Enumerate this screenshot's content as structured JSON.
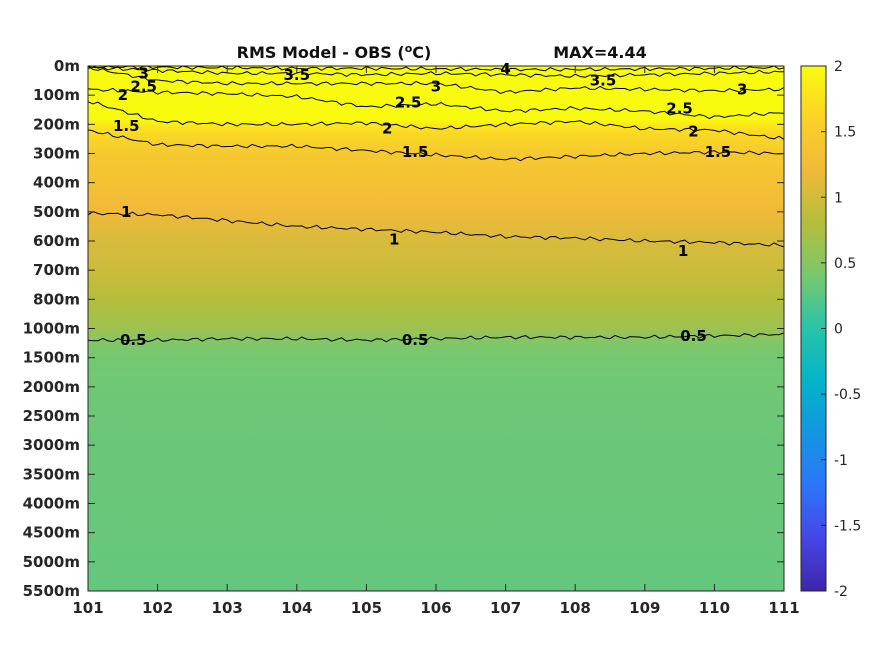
{
  "chart_data": {
    "type": "heatmap",
    "title": "RMS Model - OBS (°C)",
    "title_parts": {
      "pre": "RMS Model - OBS (",
      "sup": "o",
      "post": "C)"
    },
    "annotation": "MAX=4.44",
    "x_ticks": [
      "101",
      "102",
      "103",
      "104",
      "105",
      "106",
      "107",
      "108",
      "109",
      "110",
      "111"
    ],
    "x_range": [
      101,
      111
    ],
    "y_ticks": [
      "0m",
      "100m",
      "200m",
      "300m",
      "400m",
      "500m",
      "600m",
      "700m",
      "800m",
      "1000m",
      "1500m",
      "2000m",
      "2500m",
      "3000m",
      "3500m",
      "4000m",
      "4500m",
      "5000m",
      "5500m"
    ],
    "colorbar": {
      "range": [
        -2,
        2
      ],
      "ticks": [
        "2",
        "1.5",
        "1",
        "0.5",
        "0",
        "-0.5",
        "-1",
        "-1.5",
        "-2"
      ],
      "colormap": "parula"
    },
    "contour_levels": [
      0.5,
      1,
      1.5,
      2,
      2.5,
      3,
      3.5,
      4
    ],
    "contours": [
      {
        "level": 0.5,
        "depth_index": [
          9.4,
          9.4,
          9.35,
          9.35,
          9.4,
          9.35,
          9.3,
          9.3,
          9.3,
          9.25,
          9.2
        ]
      },
      {
        "level": 1,
        "depth_index": [
          5.05,
          5.1,
          5.3,
          5.5,
          5.6,
          5.7,
          5.85,
          5.9,
          6.0,
          6.05,
          6.15
        ]
      },
      {
        "level": 1.5,
        "depth_index": [
          2.2,
          2.7,
          2.75,
          2.75,
          2.9,
          3.05,
          3.2,
          3.1,
          3.0,
          2.95,
          3.0
        ]
      },
      {
        "level": 2,
        "depth_index": [
          1.2,
          1.9,
          2.0,
          2.0,
          1.95,
          2.15,
          2.0,
          1.9,
          2.15,
          2.2,
          2.5
        ]
      },
      {
        "level": 2.5,
        "depth_index": [
          0.8,
          0.9,
          0.95,
          1.05,
          1.4,
          1.3,
          1.55,
          1.45,
          1.55,
          1.75,
          1.6
        ]
      },
      {
        "level": 3,
        "depth_index": [
          0.05,
          0.5,
          0.6,
          0.6,
          0.6,
          0.6,
          0.9,
          0.75,
          0.8,
          0.85,
          0.8
        ]
      },
      {
        "level": 3.5,
        "depth_index": [
          0.05,
          0.15,
          0.25,
          0.25,
          0.3,
          0.25,
          0.3,
          0.35,
          0.3,
          0.25,
          0.2
        ]
      },
      {
        "level": 4,
        "depth_index": [
          0.02,
          0.04,
          0.06,
          0.08,
          0.08,
          0.1,
          0.12,
          0.12,
          0.1,
          0.08,
          0.05
        ]
      }
    ],
    "contour_labels": [
      {
        "text": "3",
        "x": 101.8,
        "y": 0.25
      },
      {
        "text": "2.5",
        "x": 101.8,
        "y": 0.7
      },
      {
        "text": "2",
        "x": 101.5,
        "y": 1.0
      },
      {
        "text": "1.5",
        "x": 101.55,
        "y": 2.05
      },
      {
        "text": "3.5",
        "x": 104.0,
        "y": 0.3
      },
      {
        "text": "3",
        "x": 106.0,
        "y": 0.7
      },
      {
        "text": "2.5",
        "x": 105.6,
        "y": 1.25
      },
      {
        "text": "2",
        "x": 105.3,
        "y": 2.15
      },
      {
        "text": "1.5",
        "x": 105.7,
        "y": 2.95
      },
      {
        "text": "4",
        "x": 107.0,
        "y": 0.1
      },
      {
        "text": "3.5",
        "x": 108.4,
        "y": 0.5
      },
      {
        "text": "2.5",
        "x": 109.5,
        "y": 1.45
      },
      {
        "text": "3",
        "x": 110.4,
        "y": 0.8
      },
      {
        "text": "2",
        "x": 109.7,
        "y": 2.25
      },
      {
        "text": "1.5",
        "x": 110.05,
        "y": 2.95
      },
      {
        "text": "1",
        "x": 101.55,
        "y": 5.0
      },
      {
        "text": "1",
        "x": 105.4,
        "y": 5.95
      },
      {
        "text": "1",
        "x": 109.55,
        "y": 6.35
      },
      {
        "text": "0.5",
        "x": 101.65,
        "y": 9.4
      },
      {
        "text": "0.5",
        "x": 105.7,
        "y": 9.4
      },
      {
        "text": "0.5",
        "x": 109.7,
        "y": 9.25
      }
    ],
    "field_by_depth_index": [
      [
        0,
        2.0
      ],
      [
        1.8,
        2.0
      ],
      [
        2.2,
        1.7
      ],
      [
        3,
        1.45
      ],
      [
        4,
        1.35
      ],
      [
        5,
        1.2
      ],
      [
        6,
        1.05
      ],
      [
        7,
        0.95
      ],
      [
        8,
        0.8
      ],
      [
        9,
        0.65
      ],
      [
        9.5,
        0.45
      ],
      [
        10,
        0.38
      ],
      [
        12,
        0.34
      ],
      [
        16,
        0.32
      ],
      [
        18,
        0.3
      ]
    ]
  }
}
